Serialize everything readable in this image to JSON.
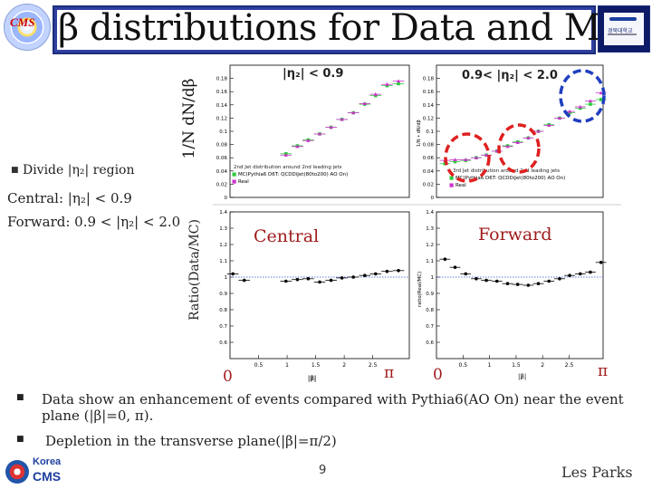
{
  "slide": {
    "title": "β distributions for Data and MC",
    "logo_left_text": "CMS",
    "logo_right_text": "경북대학교"
  },
  "left_panel": {
    "bullet_char": "■",
    "bullet_label": "Divide |η₂| region",
    "central_label": "Central: |η₂| < 0.9",
    "forward_label": "Forward: 0.9 < |η₂| < 2.0"
  },
  "axis_labels": {
    "top_ylabel": "1/N dN/dβ",
    "bottom_ylabel": "Ratio(Data/MC)",
    "x_zero_left": "0",
    "x_pi_left": "π",
    "x_zero_right": "0",
    "x_pi_right": "π"
  },
  "plots": {
    "central_top": {
      "header": "|η₂| < 0.9",
      "legend_title": "2nd Jet distribution around 2nd leading jets",
      "legend_mc": "MC(Pythia6 D6T: QCDDiJet(80to200) AO On)",
      "legend_data": "Real"
    },
    "forward_top": {
      "header": "0.9< |η₂| < 2.0",
      "legend_title": "3rd Jet distribution around 2nd leading jets",
      "legend_mc": "MC(Pythia6 D6T: QCDDiJet(80to200) AO On)",
      "legend_data": "Real",
      "ylabel_small": "1/N • dN/dβ"
    },
    "central_ratio": {
      "annotation": "Central",
      "xlabel_small": "|β|"
    },
    "forward_ratio": {
      "annotation": "Forward",
      "xlabel_small": "|β|",
      "ylabel_small": "ratio(Real/MC)"
    }
  },
  "bullets": [
    {
      "marker": "■",
      "text": "Data show an enhancement of events compared with Pythia6(AO On) near the event plane (|β|=0, π)."
    },
    {
      "marker": "■",
      "text": "Depletion in the transverse plane(|β|=π/2)"
    }
  ],
  "footer": {
    "page_number": "9",
    "author": "Les Parks",
    "logo_top": "Korea",
    "logo_bottom": "CMS"
  },
  "chart_data": [
    {
      "type": "scatter",
      "name_ref": "central_top",
      "ylim": [
        0,
        0.2
      ],
      "xlim": [
        0,
        3.14
      ],
      "yticks": [
        0,
        0.02,
        0.04,
        0.06,
        0.08,
        0.1,
        0.12,
        0.14,
        0.16,
        0.18
      ],
      "series": [
        {
          "name": "MC(Pythia6 D6T: QCDDiJet(80to200) AO On)",
          "color": "#2ecc40",
          "x": [
            0.98,
            1.18,
            1.37,
            1.57,
            1.77,
            1.96,
            2.16,
            2.36,
            2.55,
            2.75,
            2.95
          ],
          "y": [
            0.066,
            0.078,
            0.087,
            0.096,
            0.106,
            0.118,
            0.128,
            0.141,
            0.154,
            0.169,
            0.172
          ]
        },
        {
          "name": "Real",
          "color": "#cc33cc",
          "x": [
            0.98,
            1.18,
            1.37,
            1.57,
            1.77,
            1.96,
            2.16,
            2.36,
            2.55,
            2.75,
            2.95
          ],
          "y": [
            0.064,
            0.077,
            0.086,
            0.096,
            0.106,
            0.118,
            0.128,
            0.142,
            0.156,
            0.171,
            0.176
          ]
        }
      ]
    },
    {
      "type": "scatter",
      "name_ref": "forward_top",
      "ylim": [
        0,
        0.2
      ],
      "xlim": [
        0,
        3.14
      ],
      "yticks": [
        0,
        0.02,
        0.04,
        0.06,
        0.08,
        0.1,
        0.12,
        0.14,
        0.16,
        0.18
      ],
      "series": [
        {
          "name": "MC(Pythia6 D6T: QCDDiJet(80to200) AO On)",
          "color": "#2ecc40",
          "x": [
            0.16,
            0.35,
            0.55,
            0.75,
            0.94,
            1.14,
            1.34,
            1.53,
            1.73,
            1.92,
            2.12,
            2.32,
            2.51,
            2.71,
            2.9,
            3.1
          ],
          "y": [
            0.051,
            0.054,
            0.056,
            0.06,
            0.064,
            0.07,
            0.078,
            0.084,
            0.09,
            0.1,
            0.11,
            0.12,
            0.128,
            0.135,
            0.141,
            0.148
          ]
        },
        {
          "name": "Real",
          "color": "#cc33cc",
          "x": [
            0.16,
            0.35,
            0.55,
            0.75,
            0.94,
            1.14,
            1.34,
            1.53,
            1.73,
            1.92,
            2.12,
            2.32,
            2.51,
            2.71,
            2.9,
            3.1
          ],
          "y": [
            0.056,
            0.057,
            0.057,
            0.06,
            0.064,
            0.07,
            0.077,
            0.083,
            0.09,
            0.1,
            0.109,
            0.12,
            0.13,
            0.137,
            0.146,
            0.158
          ]
        }
      ]
    },
    {
      "type": "scatter",
      "name_ref": "central_ratio",
      "ylim": [
        0.5,
        1.4
      ],
      "xlim": [
        0,
        3.14
      ],
      "yticks": [
        0.6,
        0.7,
        0.8,
        0.9,
        1,
        1.1,
        1.2,
        1.3,
        1.4
      ],
      "xticks": [
        0.5,
        1,
        1.5,
        2,
        2.5
      ],
      "series": [
        {
          "name": "Real/MC",
          "color": "#000000",
          "x": [
            0.05,
            0.25,
            0.98,
            1.18,
            1.37,
            1.57,
            1.77,
            1.96,
            2.16,
            2.36,
            2.55,
            2.75,
            2.95
          ],
          "y": [
            1.02,
            0.98,
            0.975,
            0.985,
            0.99,
            0.97,
            0.98,
            0.995,
            1.0,
            1.01,
            1.02,
            1.035,
            1.04
          ]
        }
      ]
    },
    {
      "type": "scatter",
      "name_ref": "forward_ratio",
      "ylim": [
        0.5,
        1.4
      ],
      "xlim": [
        0,
        3.14
      ],
      "yticks": [
        0.6,
        0.7,
        0.8,
        0.9,
        1,
        1.1,
        1.2,
        1.3,
        1.4
      ],
      "xticks": [
        0.5,
        1,
        1.5,
        2,
        2.5
      ],
      "series": [
        {
          "name": "Real/MC",
          "color": "#000000",
          "x": [
            0.16,
            0.35,
            0.55,
            0.75,
            0.94,
            1.14,
            1.34,
            1.53,
            1.73,
            1.92,
            2.12,
            2.32,
            2.51,
            2.71,
            2.9,
            3.1
          ],
          "y": [
            1.11,
            1.06,
            1.02,
            0.99,
            0.98,
            0.975,
            0.96,
            0.955,
            0.95,
            0.96,
            0.975,
            0.99,
            1.01,
            1.02,
            1.03,
            1.09
          ]
        }
      ]
    }
  ]
}
